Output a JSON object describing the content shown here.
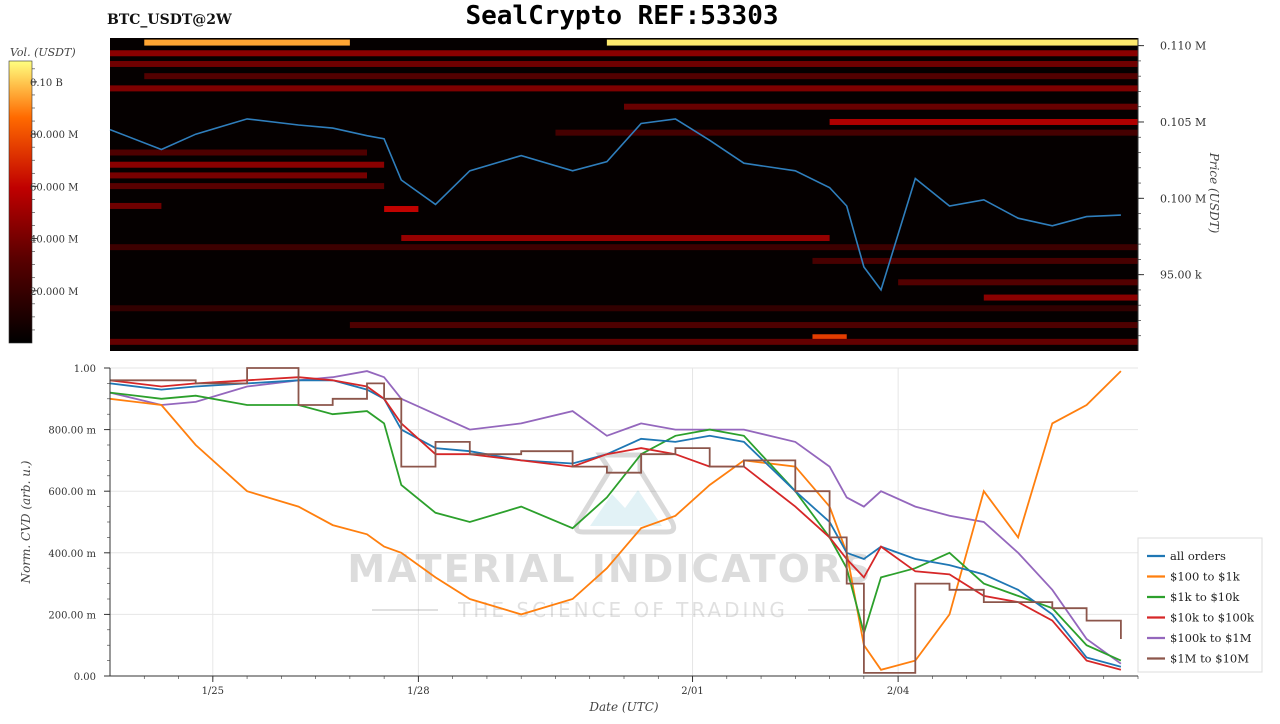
{
  "header": {
    "pair_label": "BTC_USDT@2W",
    "title": "SealCrypto REF:53303"
  },
  "watermark": {
    "main": "MATERIAL INDICATORS",
    "sub": "THE SCIENCE OF TRADING"
  },
  "colors": {
    "price_line": "#2f7ebc",
    "heat_low": "#000000",
    "heat_mid": "#b00000",
    "heat_high": "#ffd000",
    "all_orders": "#1f77b4",
    "s100_1k": "#ff7f0e",
    "s1k_10k": "#2ca02c",
    "s10k_100k": "#d62728",
    "s100k_1m": "#9467bd",
    "s1m_10m": "#8c564b"
  },
  "chart_data": [
    {
      "type": "heatmap",
      "title": "BTC_USDT@2W",
      "ylabel": "Price (USDT)",
      "colorbar_label": "Vol. (USDT)",
      "colorbar_ticks": [
        "0.10 B",
        "80.000 M",
        "60.000 M",
        "40.000 M",
        "20.000 M"
      ],
      "colorbar_tick_values": [
        100000000,
        80000000,
        60000000,
        40000000,
        20000000
      ],
      "colorbar_range": [
        0,
        108000000
      ],
      "y_ticks": [
        "0.110 M",
        "0.105 M",
        "0.100 M",
        "95.00 k"
      ],
      "y_tick_values": [
        110000,
        105000,
        100000,
        95000
      ],
      "ylim": [
        90000,
        110500
      ],
      "price_series": {
        "name": "Price",
        "x": [
          "01/23 12:00",
          "01/24 06:00",
          "01/24 18:00",
          "01/25 12:00",
          "01/26 06:00",
          "01/26 18:00",
          "01/27 06:00",
          "01/27 12:00",
          "01/27 18:00",
          "01/28 06:00",
          "01/28 18:00",
          "01/29 12:00",
          "01/30 06:00",
          "01/30 18:00",
          "01/31 06:00",
          "01/31 18:00",
          "02/01 06:00",
          "02/01 18:00",
          "02/02 12:00",
          "02/03 00:00",
          "02/03 06:00",
          "02/03 12:00",
          "02/03 18:00",
          "02/04 06:00",
          "02/04 18:00",
          "02/05 06:00",
          "02/05 18:00",
          "02/06 06:00",
          "02/06 18:00",
          "02/07 06:00"
        ],
        "values": [
          104500,
          103200,
          104200,
          105200,
          104800,
          104600,
          104100,
          103900,
          101200,
          99600,
          101800,
          102800,
          101800,
          102400,
          104900,
          105200,
          103800,
          102300,
          101800,
          100700,
          99500,
          95500,
          94000,
          101300,
          99500,
          99900,
          98700,
          98200,
          98800,
          98900
        ]
      },
      "volume_bands": [
        {
          "price": 110200,
          "from": "01/24 00:00",
          "to": "01/27 00:00",
          "volume": 95000000
        },
        {
          "price": 110200,
          "from": "01/30 18:00",
          "to": "02/07 12:00",
          "volume": 105000000
        },
        {
          "price": 109500,
          "from": "01/23 12:00",
          "to": "02/07 12:00",
          "volume": 45000000
        },
        {
          "price": 108800,
          "from": "01/23 12:00",
          "to": "02/07 12:00",
          "volume": 38000000
        },
        {
          "price": 108000,
          "from": "01/24 00:00",
          "to": "02/07 12:00",
          "volume": 30000000
        },
        {
          "price": 107200,
          "from": "01/23 12:00",
          "to": "02/07 12:00",
          "volume": 42000000
        },
        {
          "price": 106000,
          "from": "01/31 00:00",
          "to": "02/07 12:00",
          "volume": 36000000
        },
        {
          "price": 105000,
          "from": "02/03 00:00",
          "to": "02/07 12:00",
          "volume": 55000000
        },
        {
          "price": 104300,
          "from": "01/30 00:00",
          "to": "02/07 12:00",
          "volume": 25000000
        },
        {
          "price": 103000,
          "from": "01/23 12:00",
          "to": "01/27 06:00",
          "volume": 28000000
        },
        {
          "price": 102200,
          "from": "01/23 12:00",
          "to": "01/27 12:00",
          "volume": 45000000
        },
        {
          "price": 101500,
          "from": "01/23 12:00",
          "to": "01/27 06:00",
          "volume": 40000000
        },
        {
          "price": 100800,
          "from": "01/23 12:00",
          "to": "01/27 12:00",
          "volume": 32000000
        },
        {
          "price": 99500,
          "from": "01/23 12:00",
          "to": "01/24 06:00",
          "volume": 38000000
        },
        {
          "price": 99300,
          "from": "01/27 12:00",
          "to": "01/28 00:00",
          "volume": 60000000
        },
        {
          "price": 97400,
          "from": "01/27 18:00",
          "to": "02/03 00:00",
          "volume": 48000000
        },
        {
          "price": 96800,
          "from": "01/23 12:00",
          "to": "02/07 12:00",
          "volume": 22000000
        },
        {
          "price": 95900,
          "from": "02/02 18:00",
          "to": "02/07 12:00",
          "volume": 26000000
        },
        {
          "price": 94500,
          "from": "02/04 00:00",
          "to": "02/07 12:00",
          "volume": 30000000
        },
        {
          "price": 93500,
          "from": "02/05 06:00",
          "to": "02/07 12:00",
          "volume": 45000000
        },
        {
          "price": 92800,
          "from": "01/23 12:00",
          "to": "02/07 12:00",
          "volume": 18000000
        },
        {
          "price": 91700,
          "from": "01/27 00:00",
          "to": "02/07 12:00",
          "volume": 28000000
        },
        {
          "price": 90900,
          "from": "02/02 18:00",
          "to": "02/03 06:00",
          "volume": 75000000
        },
        {
          "price": 90600,
          "from": "01/23 12:00",
          "to": "02/07 12:00",
          "volume": 35000000
        }
      ]
    },
    {
      "type": "line",
      "xlabel": "Date (UTC)",
      "ylabel": "Norm. CVD (arb. u.)",
      "x_ticks": [
        "1/25",
        "1/28",
        "2/01",
        "2/04"
      ],
      "y_ticks": [
        "0.00",
        "200.00 m",
        "400.00 m",
        "600.00 m",
        "800.00 m",
        "1.00"
      ],
      "y_tick_values": [
        0,
        0.2,
        0.4,
        0.6,
        0.8,
        1.0
      ],
      "ylim": [
        0,
        1
      ],
      "grid": true,
      "legend_position": "bottom-right",
      "x": [
        "01/23 12:00",
        "01/24 06:00",
        "01/24 18:00",
        "01/25 12:00",
        "01/26 06:00",
        "01/26 18:00",
        "01/27 06:00",
        "01/27 12:00",
        "01/27 18:00",
        "01/28 06:00",
        "01/28 18:00",
        "01/29 12:00",
        "01/30 06:00",
        "01/30 18:00",
        "01/31 06:00",
        "01/31 18:00",
        "02/01 06:00",
        "02/01 18:00",
        "02/02 12:00",
        "02/03 00:00",
        "02/03 06:00",
        "02/03 12:00",
        "02/03 18:00",
        "02/04 06:00",
        "02/04 18:00",
        "02/05 06:00",
        "02/05 18:00",
        "02/06 06:00",
        "02/06 18:00",
        "02/07 06:00"
      ],
      "series": [
        {
          "name": "all orders",
          "values": [
            0.95,
            0.93,
            0.94,
            0.95,
            0.96,
            0.96,
            0.93,
            0.9,
            0.8,
            0.74,
            0.73,
            0.7,
            0.69,
            0.72,
            0.77,
            0.76,
            0.78,
            0.76,
            0.6,
            0.5,
            0.4,
            0.38,
            0.42,
            0.38,
            0.36,
            0.33,
            0.28,
            0.2,
            0.06,
            0.03
          ]
        },
        {
          "name": "$100 to $1k",
          "values": [
            0.9,
            0.88,
            0.75,
            0.6,
            0.55,
            0.49,
            0.46,
            0.42,
            0.4,
            0.32,
            0.25,
            0.2,
            0.25,
            0.35,
            0.48,
            0.52,
            0.62,
            0.7,
            0.68,
            0.55,
            0.4,
            0.1,
            0.02,
            0.05,
            0.2,
            0.6,
            0.45,
            0.82,
            0.88,
            0.99
          ]
        },
        {
          "name": "$1k to $10k",
          "values": [
            0.92,
            0.9,
            0.91,
            0.88,
            0.88,
            0.85,
            0.86,
            0.82,
            0.62,
            0.53,
            0.5,
            0.55,
            0.48,
            0.58,
            0.72,
            0.78,
            0.8,
            0.78,
            0.6,
            0.45,
            0.35,
            0.14,
            0.32,
            0.35,
            0.4,
            0.3,
            0.26,
            0.22,
            0.1,
            0.05
          ]
        },
        {
          "name": "$10k to $100k",
          "values": [
            0.96,
            0.94,
            0.95,
            0.96,
            0.97,
            0.96,
            0.94,
            0.9,
            0.82,
            0.72,
            0.72,
            0.7,
            0.68,
            0.72,
            0.74,
            0.72,
            0.68,
            0.68,
            0.55,
            0.45,
            0.38,
            0.32,
            0.42,
            0.34,
            0.33,
            0.26,
            0.24,
            0.18,
            0.05,
            0.02
          ]
        },
        {
          "name": "$100k to $1M",
          "values": [
            0.92,
            0.88,
            0.89,
            0.94,
            0.96,
            0.97,
            0.99,
            0.97,
            0.9,
            0.85,
            0.8,
            0.82,
            0.86,
            0.78,
            0.82,
            0.8,
            0.8,
            0.8,
            0.76,
            0.68,
            0.58,
            0.55,
            0.6,
            0.55,
            0.52,
            0.5,
            0.4,
            0.28,
            0.12,
            0.04
          ]
        },
        {
          "name": "$1M to $10M",
          "values": [
            0.96,
            0.96,
            0.95,
            1.0,
            0.88,
            0.9,
            0.95,
            0.9,
            0.68,
            0.76,
            0.72,
            0.73,
            0.68,
            0.66,
            0.72,
            0.74,
            0.68,
            0.7,
            0.6,
            0.45,
            0.3,
            0.01,
            0.01,
            0.3,
            0.28,
            0.24,
            0.24,
            0.22,
            0.18,
            0.12
          ]
        }
      ]
    }
  ]
}
